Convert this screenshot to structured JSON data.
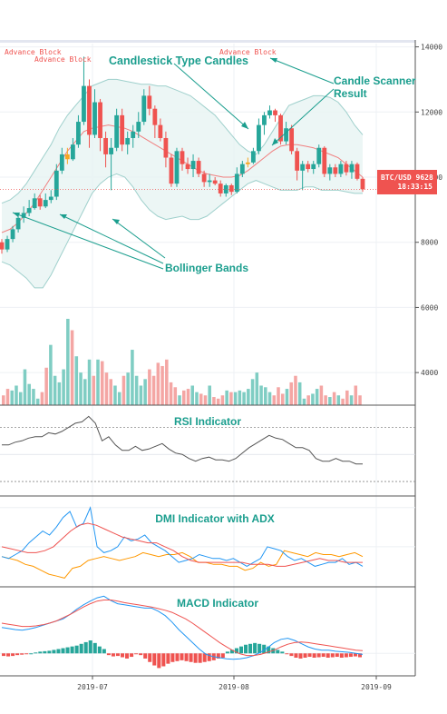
{
  "chart_data": {
    "type": "candlestick",
    "x_axis": {
      "ticks": [
        "2019-07",
        "2019-08",
        "2019-09"
      ]
    },
    "y_axis": {
      "ticks": [
        4000,
        6000,
        8000,
        10000,
        12000,
        14000
      ],
      "ylim": [
        3000,
        14100
      ]
    },
    "price_label": {
      "symbol_price": "BTC/USD 9628",
      "time": "18:33:15",
      "value": 9628
    },
    "annotations": {
      "candlestick_type": "Candlestick Type Candles",
      "scanner": "Candle Scanner\nResult",
      "bollinger": "Bollinger Bands",
      "advance_block": "Advance Block"
    },
    "panels": {
      "rsi": "RSI Indicator",
      "dmi": "DMI Indicator with ADX",
      "macd": "MACD Indicator"
    },
    "colors": {
      "up": "#26a69a",
      "down": "#ef5350",
      "pattern": "#f5a623",
      "upper_band": "#9fd0cc",
      "basis": "#f08080",
      "band_fill": "#e7f4f3",
      "rsi": "#555555",
      "plus_di": "#2196f3",
      "minus_di": "#ff9800",
      "adx": "#ef5350",
      "macd": "#2196f3",
      "signal": "#ef5350",
      "annotation": "#1b9e8e"
    },
    "candles": [
      {
        "o": 8000,
        "h": 8100,
        "l": 7650,
        "c": 7780
      },
      {
        "o": 7780,
        "h": 8200,
        "l": 7700,
        "c": 8100
      },
      {
        "o": 8100,
        "h": 8500,
        "l": 8000,
        "c": 8400
      },
      {
        "o": 8400,
        "h": 8900,
        "l": 8300,
        "c": 8750
      },
      {
        "o": 8750,
        "h": 9100,
        "l": 8600,
        "c": 8900
      },
      {
        "o": 8900,
        "h": 9300,
        "l": 8800,
        "c": 9050
      },
      {
        "o": 9050,
        "h": 9500,
        "l": 9000,
        "c": 9350
      },
      {
        "o": 9350,
        "h": 9450,
        "l": 9000,
        "c": 9100
      },
      {
        "o": 9100,
        "h": 9500,
        "l": 9050,
        "c": 9300
      },
      {
        "o": 9300,
        "h": 9600,
        "l": 9200,
        "c": 9400
      },
      {
        "o": 9400,
        "h": 10400,
        "l": 9300,
        "c": 10200
      },
      {
        "o": 10200,
        "h": 10900,
        "l": 10100,
        "c": 10700
      },
      {
        "o": 10700,
        "h": 10900,
        "l": 10400,
        "c": 10550,
        "p": 1
      },
      {
        "o": 10550,
        "h": 11200,
        "l": 10500,
        "c": 11000
      },
      {
        "o": 11000,
        "h": 11900,
        "l": 10900,
        "c": 11700
      },
      {
        "o": 11700,
        "h": 13700,
        "l": 11600,
        "c": 12800
      },
      {
        "o": 12800,
        "h": 13000,
        "l": 10900,
        "c": 11300
      },
      {
        "o": 11300,
        "h": 12700,
        "l": 11200,
        "c": 12300
      },
      {
        "o": 12300,
        "h": 12400,
        "l": 10800,
        "c": 11200
      },
      {
        "o": 11200,
        "h": 11400,
        "l": 10300,
        "c": 10700
      },
      {
        "o": 10700,
        "h": 11200,
        "l": 9600,
        "c": 10900
      },
      {
        "o": 10900,
        "h": 12100,
        "l": 10800,
        "c": 11900
      },
      {
        "o": 11900,
        "h": 12100,
        "l": 10800,
        "c": 11000
      },
      {
        "o": 11000,
        "h": 11400,
        "l": 10700,
        "c": 11200
      },
      {
        "o": 11200,
        "h": 11600,
        "l": 10900,
        "c": 11400
      },
      {
        "o": 11400,
        "h": 12000,
        "l": 11200,
        "c": 11700
      },
      {
        "o": 11700,
        "h": 12700,
        "l": 11600,
        "c": 12500
      },
      {
        "o": 12500,
        "h": 12800,
        "l": 11900,
        "c": 12100
      },
      {
        "o": 12100,
        "h": 12200,
        "l": 11200,
        "c": 11600
      },
      {
        "o": 11600,
        "h": 11800,
        "l": 11100,
        "c": 11200
      },
      {
        "o": 11200,
        "h": 11400,
        "l": 10300,
        "c": 10600
      },
      {
        "o": 10600,
        "h": 10700,
        "l": 9700,
        "c": 9800
      },
      {
        "o": 9800,
        "h": 10900,
        "l": 9700,
        "c": 10800
      },
      {
        "o": 10800,
        "h": 10900,
        "l": 10200,
        "c": 10400
      },
      {
        "o": 10400,
        "h": 10600,
        "l": 10100,
        "c": 10250
      },
      {
        "o": 10250,
        "h": 10700,
        "l": 10000,
        "c": 10500
      },
      {
        "o": 10500,
        "h": 10600,
        "l": 10000,
        "c": 10100
      },
      {
        "o": 10100,
        "h": 10200,
        "l": 9700,
        "c": 9850
      },
      {
        "o": 9850,
        "h": 10100,
        "l": 9700,
        "c": 9900
      },
      {
        "o": 9900,
        "h": 10000,
        "l": 9750,
        "c": 9800
      },
      {
        "o": 9800,
        "h": 9900,
        "l": 9400,
        "c": 9500
      },
      {
        "o": 9500,
        "h": 9800,
        "l": 9400,
        "c": 9750
      },
      {
        "o": 9750,
        "h": 9800,
        "l": 9450,
        "c": 9550
      },
      {
        "o": 9550,
        "h": 10300,
        "l": 9500,
        "c": 10100
      },
      {
        "o": 10100,
        "h": 10500,
        "l": 10000,
        "c": 10400
      },
      {
        "o": 10400,
        "h": 10600,
        "l": 10300,
        "c": 10450,
        "p": 1
      },
      {
        "o": 10450,
        "h": 10900,
        "l": 10400,
        "c": 10800
      },
      {
        "o": 10800,
        "h": 11800,
        "l": 10700,
        "c": 11600
      },
      {
        "o": 11600,
        "h": 12000,
        "l": 11300,
        "c": 11900
      },
      {
        "o": 11900,
        "h": 12200,
        "l": 11800,
        "c": 12050
      },
      {
        "o": 12050,
        "h": 12100,
        "l": 11700,
        "c": 11900
      },
      {
        "o": 11900,
        "h": 11950,
        "l": 11000,
        "c": 11100
      },
      {
        "o": 11100,
        "h": 11700,
        "l": 11000,
        "c": 11500
      },
      {
        "o": 11500,
        "h": 11600,
        "l": 10700,
        "c": 10800
      },
      {
        "o": 10800,
        "h": 10900,
        "l": 9900,
        "c": 10200
      },
      {
        "o": 10200,
        "h": 10500,
        "l": 9600,
        "c": 10400
      },
      {
        "o": 10400,
        "h": 10500,
        "l": 10150,
        "c": 10250
      },
      {
        "o": 10250,
        "h": 10500,
        "l": 10100,
        "c": 10400
      },
      {
        "o": 10400,
        "h": 11000,
        "l": 10300,
        "c": 10900
      },
      {
        "o": 10900,
        "h": 10950,
        "l": 10000,
        "c": 10100
      },
      {
        "o": 10100,
        "h": 10400,
        "l": 9900,
        "c": 10300
      },
      {
        "o": 10300,
        "h": 10400,
        "l": 10000,
        "c": 10100
      },
      {
        "o": 10100,
        "h": 10500,
        "l": 10000,
        "c": 10400
      },
      {
        "o": 10400,
        "h": 10500,
        "l": 10050,
        "c": 10150
      },
      {
        "o": 10150,
        "h": 10500,
        "l": 9950,
        "c": 10400
      },
      {
        "o": 10400,
        "h": 10450,
        "l": 9900,
        "c": 9950
      },
      {
        "o": 9950,
        "h": 10000,
        "l": 9550,
        "c": 9628
      }
    ],
    "bollinger": {
      "upper": [
        9200,
        9300,
        9500,
        9800,
        10200,
        10600,
        11000,
        11500,
        11900,
        12200,
        12500,
        12800,
        12900,
        13000,
        13000,
        12950,
        12900,
        12850,
        12850,
        12800,
        12800,
        12700,
        12600,
        12500,
        12300,
        12100,
        11900,
        11600,
        11300,
        11000,
        10800,
        10700,
        11000,
        11400,
        11800,
        12200,
        12300,
        12400,
        12500,
        12500,
        12450,
        12300,
        12000,
        11600,
        11300
      ],
      "basis": [
        8300,
        8400,
        8600,
        8900,
        9200,
        9600,
        10000,
        10400,
        10800,
        11100,
        11400,
        11500,
        11550,
        11600,
        11550,
        11500,
        11400,
        11250,
        11100,
        10950,
        10800,
        10650,
        10500,
        10350,
        10200,
        10100,
        10050,
        10000,
        10000,
        10050,
        10200,
        10400,
        10600,
        10800,
        10950,
        11000,
        11000,
        10950,
        10900,
        10800,
        10700,
        10600,
        10400,
        10200,
        10000
      ],
      "lower": [
        7400,
        7300,
        7100,
        6900,
        6600,
        6600,
        7000,
        7500,
        8000,
        8500,
        9000,
        9500,
        9800,
        10000,
        10100,
        10000,
        9700,
        9300,
        9000,
        8800,
        8700,
        8750,
        8800,
        8700,
        8700,
        8800,
        9000,
        9200,
        9400,
        9600,
        9800,
        9900,
        9800,
        9700,
        9600,
        9600,
        9600,
        9700,
        9700,
        9600,
        9600,
        9600,
        9550,
        9500,
        9500
      ]
    },
    "volume": [
      3300,
      3500,
      3450,
      3600,
      3400,
      4100,
      3650,
      3500,
      3200,
      3400,
      4150,
      4850,
      3900,
      3700,
      4100,
      5650,
      5300,
      4500,
      4000,
      3800,
      4400,
      3900,
      4400,
      4350,
      4000,
      3800,
      3600,
      3400,
      3900,
      4000,
      4700,
      3900,
      3600,
      3800,
      4100,
      3900,
      4300,
      4200,
      4400,
      3700,
      3550,
      3300,
      3450,
      3500,
      3600,
      3400,
      3350,
      3300,
      3600,
      3250,
      3200,
      3300,
      3450,
      3400,
      3400,
      3450,
      3400,
      3500,
      3800,
      4000,
      3600,
      3550,
      3400,
      3300,
      3550,
      3350,
      3500,
      3700,
      3900,
      3700,
      3200,
      3300,
      3350,
      3500,
      3600,
      3300,
      3250,
      3400,
      3300,
      3200,
      3450,
      3300,
      3600,
      3300
    ],
    "rsi": [
      57,
      57,
      59,
      60,
      62,
      63,
      63,
      66,
      65,
      67,
      70,
      73,
      74,
      78,
      73,
      60,
      63,
      57,
      53,
      53,
      56,
      53,
      54,
      56,
      58,
      54,
      51,
      50,
      47,
      45,
      47,
      48,
      46,
      46,
      45,
      47,
      51,
      55,
      58,
      61,
      64,
      62,
      61,
      58,
      55,
      55,
      53,
      47,
      45,
      45,
      47,
      45,
      45,
      43,
      43
    ],
    "dmi": {
      "plus": [
        15,
        14,
        16,
        18,
        22,
        25,
        28,
        26,
        30,
        35,
        38,
        30,
        32,
        40,
        20,
        17,
        18,
        20,
        25,
        23,
        24,
        26,
        22,
        20,
        18,
        15,
        12,
        13,
        14,
        16,
        15,
        14,
        14,
        13,
        14,
        12,
        10,
        12,
        14,
        20,
        19,
        18,
        15,
        13,
        14,
        12,
        10,
        11,
        12,
        12,
        14,
        11,
        12,
        10
      ],
      "minus": [
        15,
        14,
        13,
        11,
        10,
        8,
        6,
        5,
        4,
        9,
        10,
        13,
        14,
        15,
        14,
        13,
        14,
        15,
        17,
        16,
        15,
        16,
        16,
        17,
        15,
        12,
        12,
        11,
        11,
        10,
        10,
        8,
        9,
        12,
        10,
        11,
        18,
        17,
        16,
        15,
        17,
        16,
        16,
        15,
        16,
        17,
        15
      ],
      "adx": [
        20,
        19,
        18,
        17,
        17,
        18,
        20,
        24,
        28,
        31,
        32,
        31,
        29,
        27,
        25,
        24,
        23,
        22,
        22,
        20,
        18,
        15,
        13,
        12,
        12,
        12,
        12,
        12,
        12,
        11,
        11,
        11,
        10,
        10,
        11,
        12,
        13,
        14,
        13,
        13,
        12,
        12,
        12
      ]
    },
    "macd": {
      "macd": [
        480,
        460,
        440,
        430,
        450,
        480,
        520,
        560,
        600,
        640,
        720,
        820,
        900,
        970,
        1030,
        1060,
        980,
        920,
        900,
        880,
        860,
        840,
        840,
        780,
        700,
        580,
        440,
        320,
        200,
        80,
        -20,
        -60,
        -80,
        -100,
        -110,
        -100,
        -80,
        -40,
        20,
        100,
        200,
        260,
        280,
        240,
        180,
        120,
        80,
        60,
        60,
        40,
        30,
        20,
        0,
        -20
      ],
      "signal": [
        560,
        540,
        520,
        500,
        500,
        510,
        530,
        560,
        600,
        660,
        720,
        790,
        860,
        920,
        970,
        990,
        990,
        970,
        940,
        920,
        900,
        880,
        860,
        830,
        800,
        760,
        700,
        640,
        560,
        470,
        380,
        290,
        200,
        120,
        50,
        -10,
        -40,
        -40,
        -20,
        20,
        60,
        120,
        170,
        200,
        210,
        200,
        180,
        160,
        140,
        120,
        100,
        80,
        60,
        50
      ],
      "hist": [
        -30,
        -35,
        -30,
        -20,
        -15,
        -5,
        0,
        10,
        20,
        25,
        30,
        40,
        50,
        60,
        70,
        80,
        90,
        110,
        130,
        150,
        120,
        80,
        50,
        -20,
        -35,
        -30,
        -45,
        -60,
        -40,
        -10,
        -20,
        -60,
        -100,
        -140,
        -170,
        -150,
        -120,
        -100,
        -90,
        -80,
        -90,
        -100,
        -110,
        -110,
        -100,
        -90,
        -80,
        -60,
        -50,
        20,
        40,
        60,
        80,
        100,
        110,
        120,
        110,
        100,
        80,
        60,
        40,
        20,
        -10,
        -30,
        -50,
        -60,
        -50,
        -40,
        -50,
        -45,
        -40,
        -50,
        -45,
        -40,
        -50,
        -45,
        -40,
        -35,
        -45
      ]
    }
  }
}
